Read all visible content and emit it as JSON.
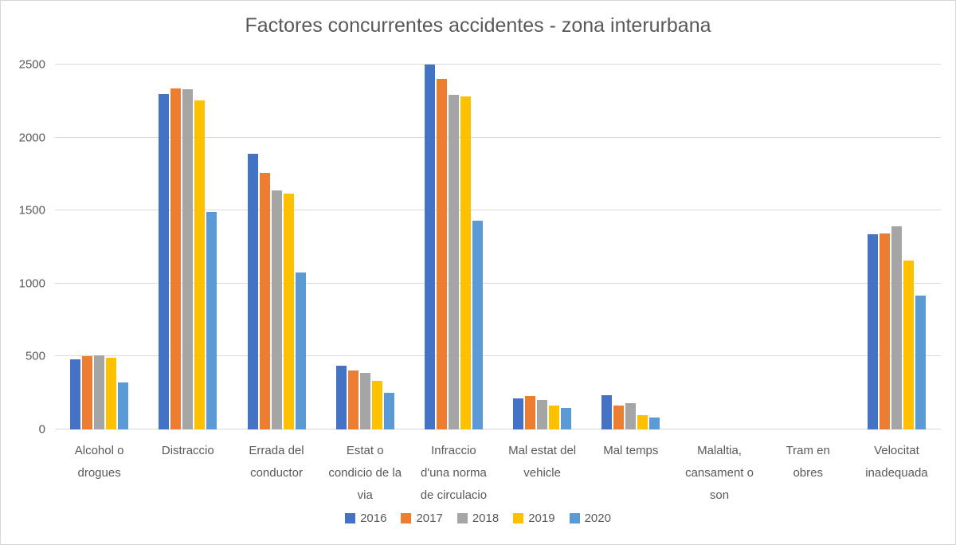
{
  "chart_data": {
    "type": "bar",
    "title": "Factores concurrentes accidentes - zona interurbana",
    "xlabel": "",
    "ylabel": "",
    "ylim": [
      0,
      2500
    ],
    "ytick_interval": 500,
    "yticks": [
      "0",
      "500",
      "1000",
      "1500",
      "2000",
      "2500"
    ],
    "grid": true,
    "legend_position": "bottom",
    "categories": [
      "Alcohol o drogues",
      "Distraccio",
      "Errada del conductor",
      "Estat o condicio de la via",
      "Infraccio d'una norma de circulacio",
      "Mal estat del vehicle",
      "Mal temps",
      "Malaltia, cansament o son",
      "Tram en obres",
      "Velocitat inadequada"
    ],
    "series": [
      {
        "name": "2016",
        "color": "#4472C4",
        "values": [
          480,
          2300,
          1890,
          435,
          2500,
          215,
          235,
          0,
          0,
          1340
        ]
      },
      {
        "name": "2017",
        "color": "#ED7D31",
        "values": [
          500,
          2335,
          1760,
          405,
          2400,
          230,
          165,
          0,
          0,
          1345
        ]
      },
      {
        "name": "2018",
        "color": "#A5A5A5",
        "values": [
          510,
          2330,
          1635,
          390,
          2290,
          200,
          180,
          0,
          0,
          1390
        ]
      },
      {
        "name": "2019",
        "color": "#FFC000",
        "values": [
          490,
          2255,
          1615,
          335,
          2280,
          165,
          100,
          0,
          0,
          1160
        ]
      },
      {
        "name": "2020",
        "color": "#5B9BD5",
        "values": [
          320,
          1490,
          1075,
          250,
          1430,
          145,
          80,
          0,
          0,
          915
        ]
      }
    ]
  },
  "colors": {
    "text": "#595959",
    "gridline": "#D9D9D9",
    "axis_line": "#D9D9D9",
    "background": "#FFFFFF",
    "canvas_border": "#D6D6D6"
  }
}
